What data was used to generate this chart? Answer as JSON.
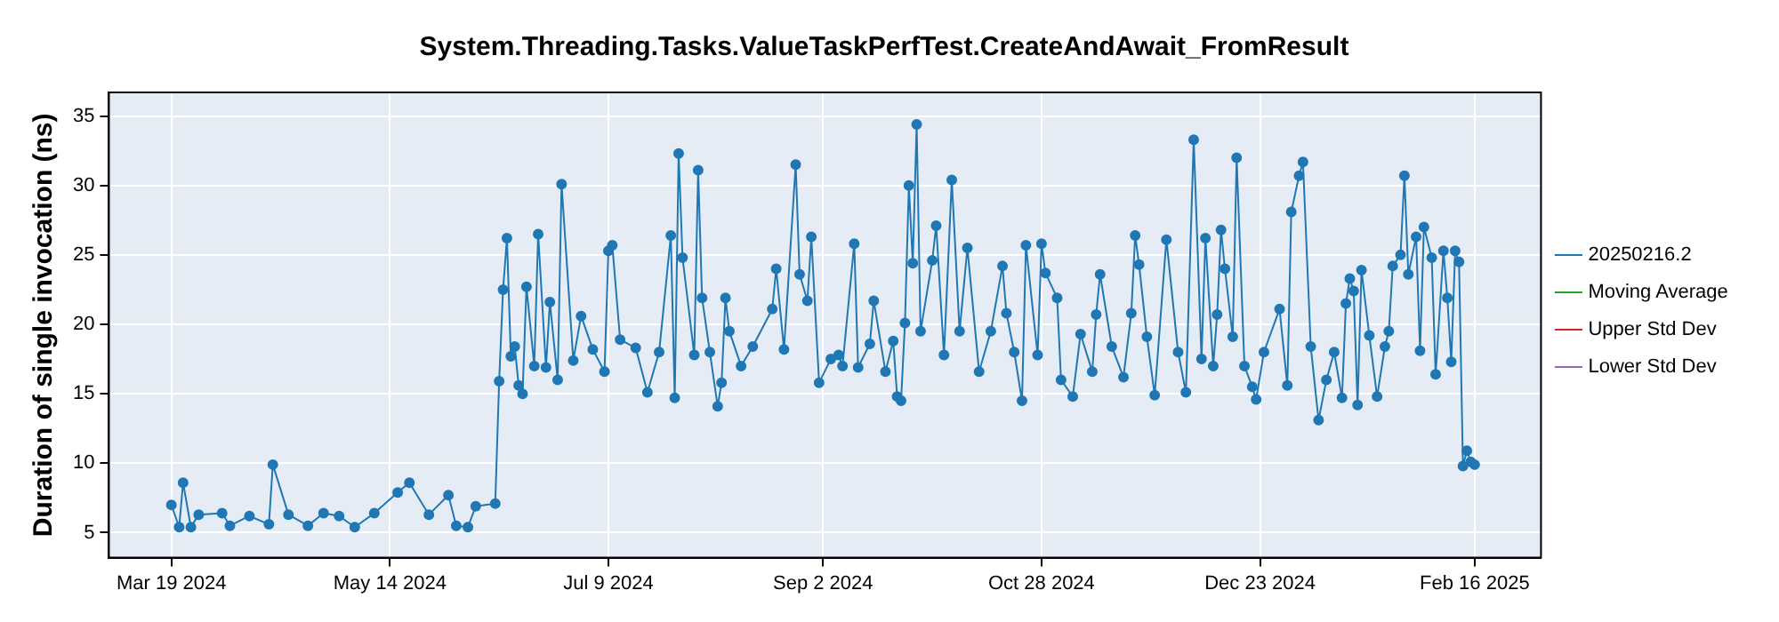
{
  "chart_data": {
    "type": "line",
    "title": "System.Threading.Tasks.ValueTaskPerfTest.CreateAndAwait_FromResult",
    "ylabel": "Duration of single invocation (ns)",
    "xlim": [
      "2024-03-03",
      "2025-03-05"
    ],
    "xticks": [
      {
        "value": "2024-03-19",
        "label": "Mar 19 2024"
      },
      {
        "value": "2024-05-14",
        "label": "May 14 2024"
      },
      {
        "value": "2024-07-09",
        "label": "Jul 9 2024"
      },
      {
        "value": "2024-09-02",
        "label": "Sep 2 2024"
      },
      {
        "value": "2024-10-28",
        "label": "Oct 28 2024"
      },
      {
        "value": "2024-12-23",
        "label": "Dec 23 2024"
      },
      {
        "value": "2025-02-16",
        "label": "Feb 16 2025"
      }
    ],
    "ylim": [
      3.2,
      36.7
    ],
    "yticks": [
      5,
      10,
      15,
      20,
      25,
      30,
      35
    ],
    "grid": true,
    "legend": "right",
    "marker": "circle",
    "line_style": "solid",
    "series": [
      {
        "name": "20250216.2",
        "color": "#1f77b4",
        "x": [
          "2024-03-19",
          "2024-03-21",
          "2024-03-22",
          "2024-03-24",
          "2024-03-26",
          "2024-04-01",
          "2024-04-03",
          "2024-04-08",
          "2024-04-13",
          "2024-04-14",
          "2024-04-18",
          "2024-04-23",
          "2024-04-27",
          "2024-05-01",
          "2024-05-05",
          "2024-05-10",
          "2024-05-16",
          "2024-05-19",
          "2024-05-24",
          "2024-05-29",
          "2024-05-31",
          "2024-06-03",
          "2024-06-05",
          "2024-06-10",
          "2024-06-11",
          "2024-06-12",
          "2024-06-13",
          "2024-06-14",
          "2024-06-15",
          "2024-06-16",
          "2024-06-17",
          "2024-06-18",
          "2024-06-20",
          "2024-06-21",
          "2024-06-23",
          "2024-06-24",
          "2024-06-26",
          "2024-06-27",
          "2024-06-30",
          "2024-07-02",
          "2024-07-05",
          "2024-07-08",
          "2024-07-09",
          "2024-07-10",
          "2024-07-12",
          "2024-07-16",
          "2024-07-19",
          "2024-07-22",
          "2024-07-25",
          "2024-07-26",
          "2024-07-27",
          "2024-07-28",
          "2024-07-31",
          "2024-08-01",
          "2024-08-02",
          "2024-08-04",
          "2024-08-06",
          "2024-08-07",
          "2024-08-08",
          "2024-08-09",
          "2024-08-12",
          "2024-08-15",
          "2024-08-20",
          "2024-08-21",
          "2024-08-23",
          "2024-08-26",
          "2024-08-27",
          "2024-08-29",
          "2024-08-30",
          "2024-09-01",
          "2024-09-04",
          "2024-09-06",
          "2024-09-07",
          "2024-09-10",
          "2024-09-11",
          "2024-09-14",
          "2024-09-15",
          "2024-09-18",
          "2024-09-20",
          "2024-09-21",
          "2024-09-22",
          "2024-09-23",
          "2024-09-24",
          "2024-09-25",
          "2024-09-26",
          "2024-09-27",
          "2024-09-30",
          "2024-10-01",
          "2024-10-03",
          "2024-10-05",
          "2024-10-07",
          "2024-10-09",
          "2024-10-12",
          "2024-10-15",
          "2024-10-18",
          "2024-10-19",
          "2024-10-21",
          "2024-10-23",
          "2024-10-24",
          "2024-10-27",
          "2024-10-28",
          "2024-10-29",
          "2024-11-01",
          "2024-11-02",
          "2024-11-05",
          "2024-11-07",
          "2024-11-10",
          "2024-11-11",
          "2024-11-12",
          "2024-11-15",
          "2024-11-18",
          "2024-11-20",
          "2024-11-21",
          "2024-11-22",
          "2024-11-24",
          "2024-11-26",
          "2024-11-29",
          "2024-12-02",
          "2024-12-04",
          "2024-12-06",
          "2024-12-08",
          "2024-12-09",
          "2024-12-11",
          "2024-12-12",
          "2024-12-13",
          "2024-12-14",
          "2024-12-16",
          "2024-12-17",
          "2024-12-19",
          "2024-12-21",
          "2024-12-22",
          "2024-12-24",
          "2024-12-28",
          "2024-12-30",
          "2024-12-31",
          "2025-01-02",
          "2025-01-03",
          "2025-01-05",
          "2025-01-07",
          "2025-01-09",
          "2025-01-11",
          "2025-01-13",
          "2025-01-14",
          "2025-01-15",
          "2025-01-16",
          "2025-01-17",
          "2025-01-18",
          "2025-01-20",
          "2025-01-22",
          "2025-01-24",
          "2025-01-25",
          "2025-01-26",
          "2025-01-28",
          "2025-01-29",
          "2025-01-30",
          "2025-02-01",
          "2025-02-02",
          "2025-02-03",
          "2025-02-05",
          "2025-02-06",
          "2025-02-08",
          "2025-02-09",
          "2025-02-10",
          "2025-02-11",
          "2025-02-12",
          "2025-02-13",
          "2025-02-14",
          "2025-02-15",
          "2025-02-16"
        ],
        "values": [
          7.0,
          5.4,
          8.6,
          5.4,
          6.3,
          6.4,
          5.5,
          6.2,
          5.6,
          9.9,
          6.3,
          5.5,
          6.4,
          6.2,
          5.4,
          6.4,
          7.9,
          8.6,
          6.3,
          7.7,
          5.5,
          5.4,
          6.9,
          7.1,
          15.9,
          22.5,
          26.2,
          17.7,
          18.4,
          15.6,
          15.0,
          22.7,
          17.0,
          26.5,
          16.9,
          21.6,
          16.0,
          30.1,
          17.4,
          20.6,
          18.2,
          16.6,
          25.3,
          25.7,
          18.9,
          18.3,
          15.1,
          18.0,
          26.4,
          14.7,
          32.3,
          24.8,
          17.8,
          31.1,
          21.9,
          18.0,
          14.1,
          15.8,
          21.9,
          19.5,
          17.0,
          18.4,
          21.1,
          24.0,
          18.2,
          31.5,
          23.6,
          21.7,
          26.3,
          15.8,
          17.5,
          17.8,
          17.0,
          25.8,
          16.9,
          18.6,
          21.7,
          16.6,
          18.8,
          14.8,
          14.5,
          20.1,
          30.0,
          24.4,
          34.4,
          19.5,
          24.6,
          27.1,
          17.8,
          30.4,
          19.5,
          25.5,
          16.6,
          19.5,
          24.2,
          20.8,
          18.0,
          14.5,
          25.7,
          17.8,
          25.8,
          23.7,
          21.9,
          16.0,
          14.8,
          19.3,
          16.6,
          20.7,
          23.6,
          18.4,
          16.2,
          20.8,
          26.4,
          24.3,
          19.1,
          14.9,
          26.1,
          18.0,
          15.1,
          33.3,
          17.5,
          26.2,
          17.0,
          20.7,
          26.8,
          24.0,
          19.1,
          32.0,
          17.0,
          15.5,
          14.6,
          18.0,
          21.1,
          15.6,
          28.1,
          30.7,
          31.7,
          18.4,
          13.1,
          16.0,
          18.0,
          14.7,
          21.5,
          23.3,
          22.4,
          14.2,
          23.9,
          19.2,
          14.8,
          18.4,
          19.5,
          24.2,
          25.0,
          30.7,
          23.6,
          26.3,
          18.1,
          27.0,
          24.8,
          16.4,
          25.3,
          21.9,
          17.3,
          25.3,
          24.5,
          9.8,
          10.9,
          10.1,
          9.9
        ]
      },
      {
        "name": "Moving Average",
        "color": "#2ca02c"
      },
      {
        "name": "Upper Std Dev",
        "color": "#d62728"
      },
      {
        "name": "Lower Std Dev",
        "color": "#9467bd"
      }
    ]
  }
}
